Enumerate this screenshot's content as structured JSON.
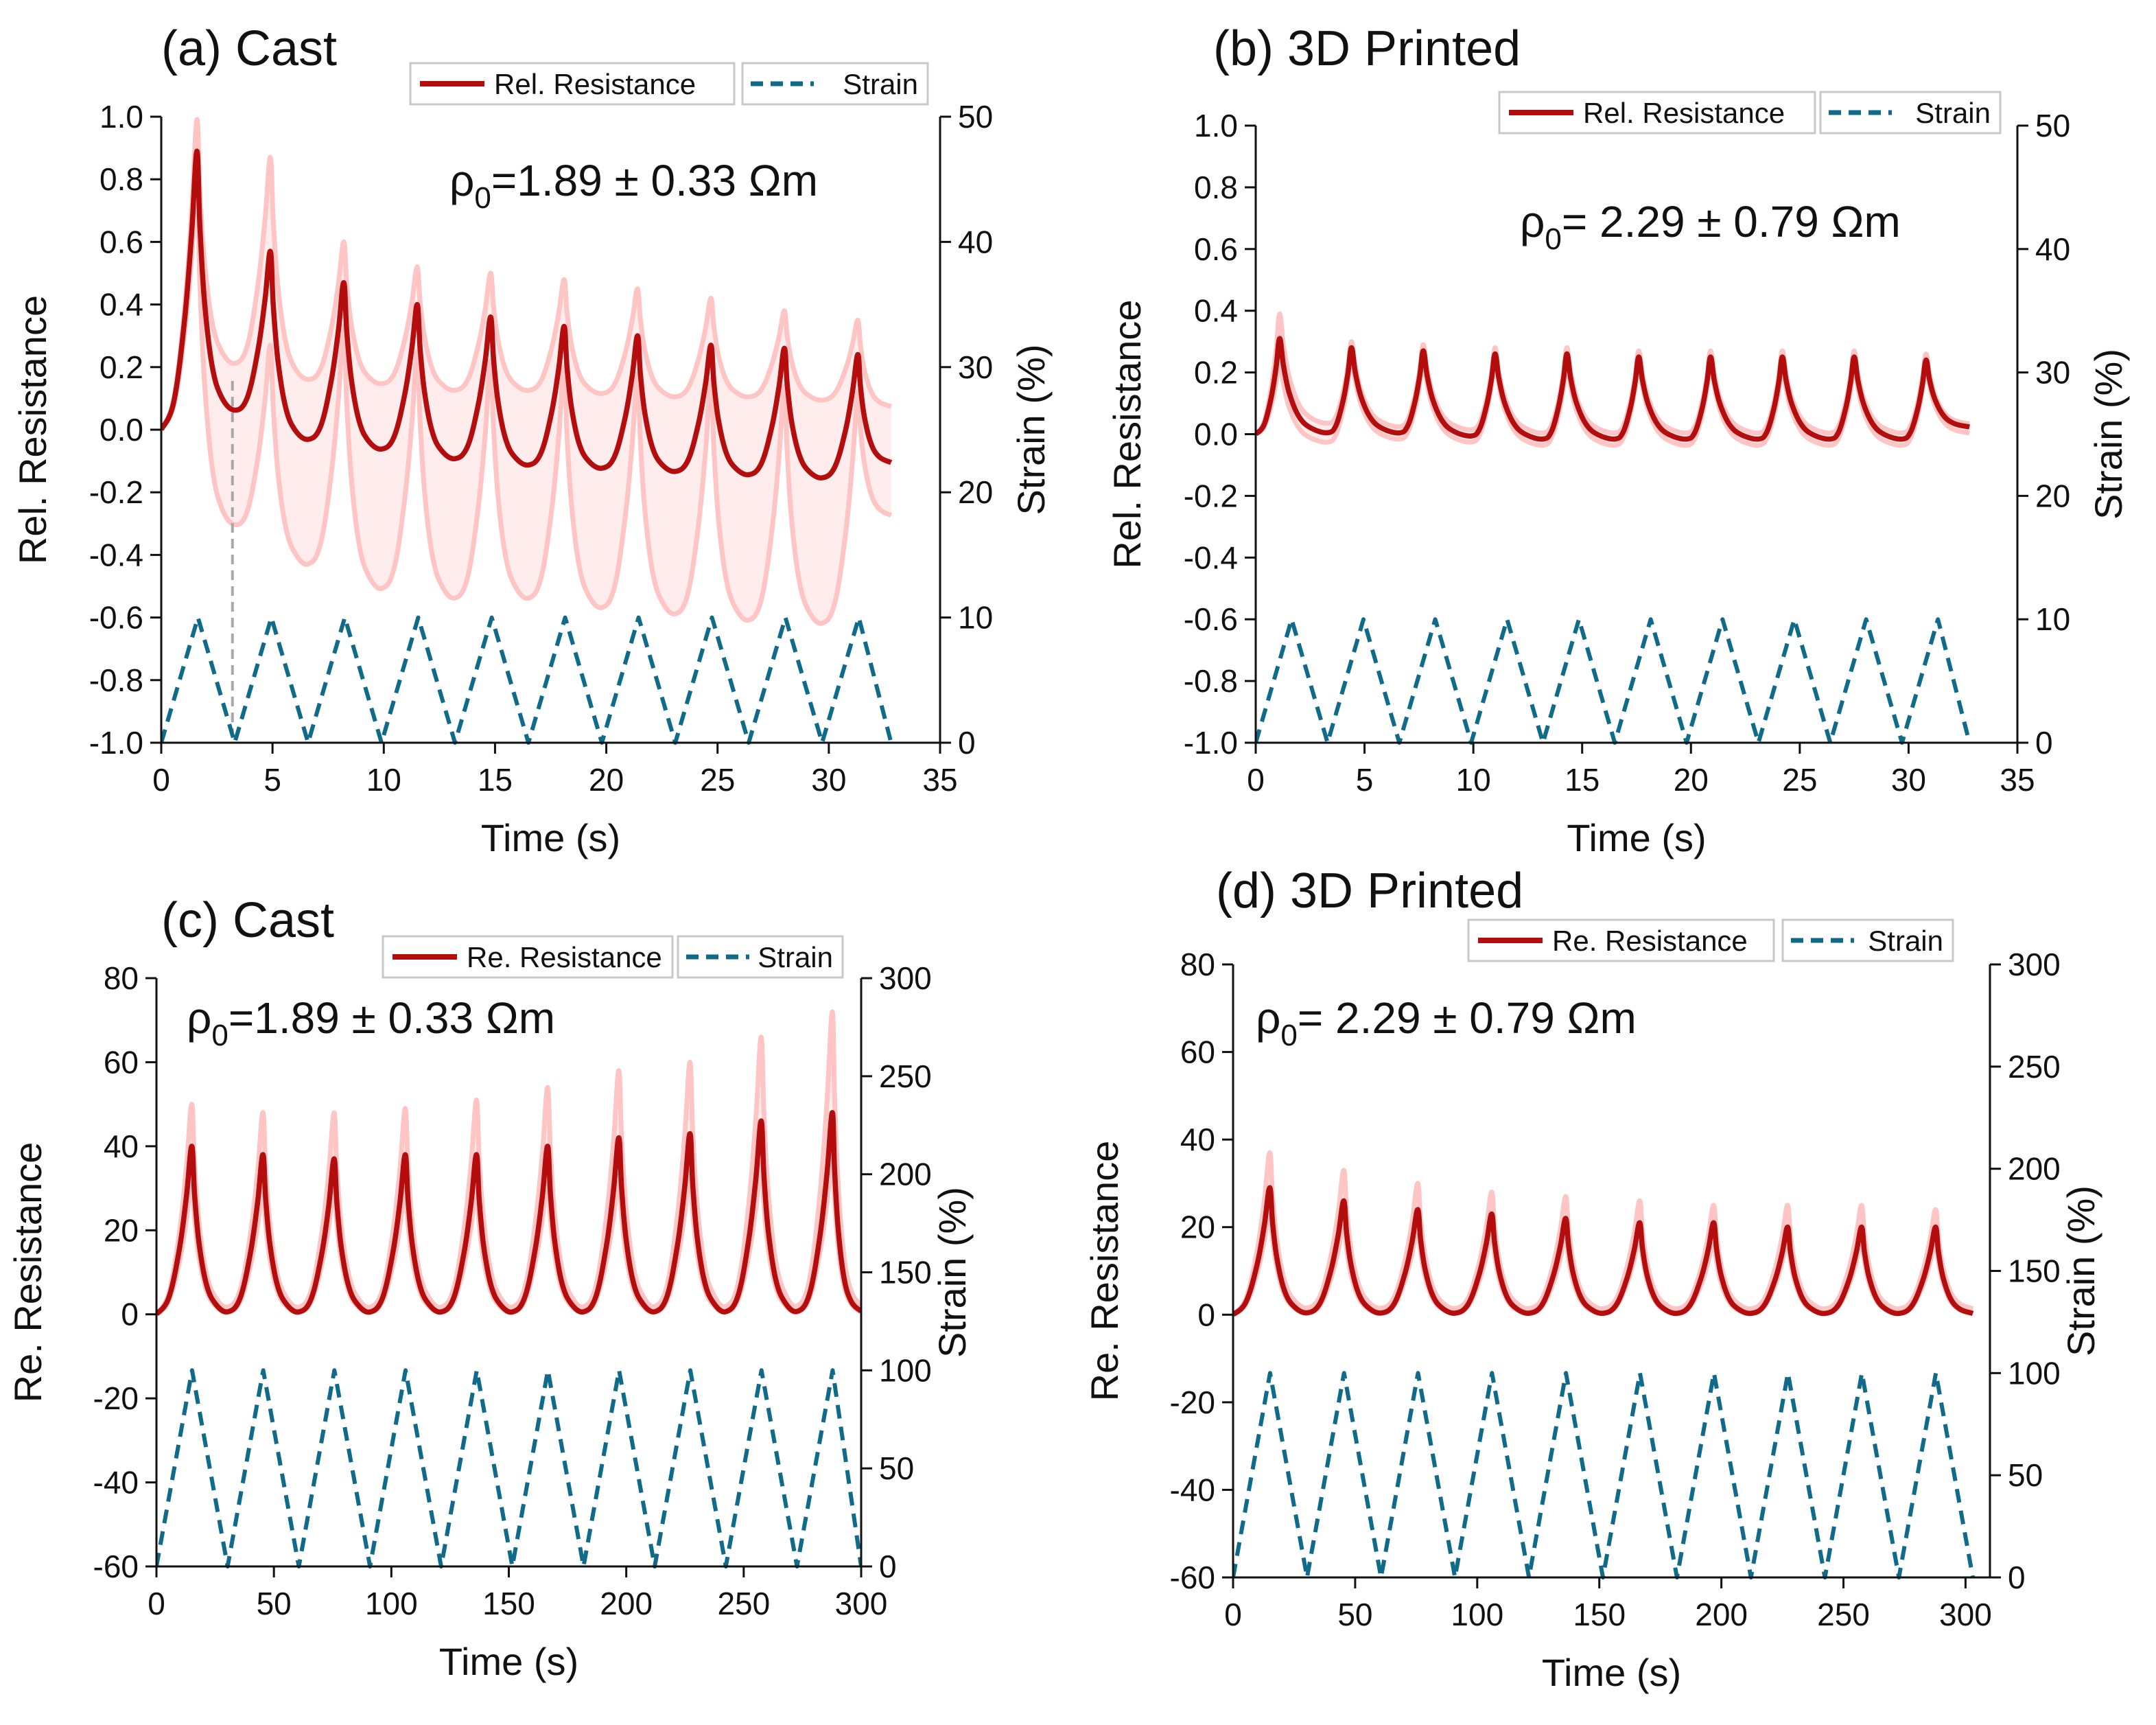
{
  "colors": {
    "resistance": "#b30d0d",
    "resistance_band": "#ffc4c4",
    "strain": "#106a8a",
    "axis": "#111111",
    "marker": "#a8a8a8"
  },
  "chart_data": [
    {
      "type": "line",
      "panel_label": "(a) Cast",
      "annotation_prefix": "ρ",
      "annotation_sub": "0",
      "annotation_text": "=1.89 ± 0.33 Ωm",
      "xlabel": "Time (s)",
      "ylabel_left": "Rel. Resistance",
      "ylabel_right": "Strain (%)",
      "legend": [
        "Rel. Resistance",
        "Strain"
      ],
      "xlim": [
        0,
        35
      ],
      "ylim_left": [
        -1.0,
        1.0
      ],
      "ylim_right": [
        0,
        50
      ],
      "x_ticks": [
        "0",
        "5",
        "10",
        "15",
        "20",
        "25",
        "30",
        "35"
      ],
      "y_ticks_left": [
        "-1.0",
        "-0.8",
        "-0.6",
        "-0.4",
        "-0.2",
        "0.0",
        "0.2",
        "0.4",
        "0.6",
        "0.8",
        "1.0"
      ],
      "y_ticks_right": [
        "0",
        "10",
        "20",
        "30",
        "40",
        "50"
      ],
      "series": [
        {
          "name": "Rel. Resistance",
          "style": "solid",
          "axis": "left",
          "start": [
            0,
            0.0
          ],
          "period": 3.3,
          "peak_time_in_cycle": 1.6,
          "peaks": [
            0.89,
            0.57,
            0.47,
            0.4,
            0.36,
            0.33,
            0.3,
            0.27,
            0.26,
            0.24
          ],
          "troughs": [
            0.05,
            -0.04,
            -0.07,
            -0.1,
            -0.12,
            -0.13,
            -0.14,
            -0.15,
            -0.16,
            -0.11
          ],
          "band_upper_peaks": [
            0.99,
            0.87,
            0.6,
            0.52,
            0.5,
            0.48,
            0.45,
            0.42,
            0.38,
            0.35
          ],
          "band_upper_troughs": [
            0.2,
            0.15,
            0.14,
            0.12,
            0.12,
            0.11,
            0.1,
            0.1,
            0.09,
            0.07
          ],
          "band_lower_peaks": [
            0.78,
            0.27,
            0.33,
            0.25,
            0.22,
            0.2,
            0.18,
            0.16,
            0.14,
            0.12
          ],
          "band_lower_troughs": [
            -0.32,
            -0.44,
            -0.52,
            -0.55,
            -0.55,
            -0.58,
            -0.6,
            -0.62,
            -0.63,
            -0.28
          ],
          "end_x": 32.8
        },
        {
          "name": "Strain",
          "style": "dashed",
          "axis": "right",
          "period": 3.3,
          "min": 0,
          "max": 10,
          "cycles": 10,
          "end_x": 32.8
        }
      ],
      "marker_line_x": 3.2
    },
    {
      "type": "line",
      "panel_label": "(b) 3D Printed",
      "annotation_prefix": "ρ",
      "annotation_sub": "0",
      "annotation_text": "= 2.29 ± 0.79 Ωm",
      "xlabel": "Time (s)",
      "ylabel_left": "Rel. Resistance",
      "ylabel_right": "Strain (%)",
      "legend": [
        "Rel. Resistance",
        "Strain"
      ],
      "xlim": [
        0,
        35
      ],
      "ylim_left": [
        -1.0,
        1.0
      ],
      "ylim_right": [
        0,
        50
      ],
      "x_ticks": [
        "0",
        "5",
        "10",
        "15",
        "20",
        "25",
        "30",
        "35"
      ],
      "y_ticks_left": [
        "-1.0",
        "-0.8",
        "-0.6",
        "-0.4",
        "-0.2",
        "0.0",
        "0.2",
        "0.4",
        "0.6",
        "0.8",
        "1.0"
      ],
      "y_ticks_right": [
        "0",
        "10",
        "20",
        "30",
        "40",
        "50"
      ],
      "series": [
        {
          "name": "Rel. Resistance",
          "style": "solid",
          "axis": "left",
          "start": [
            0,
            0.0
          ],
          "period": 3.3,
          "peak_time_in_cycle": 1.1,
          "peaks": [
            0.31,
            0.28,
            0.27,
            0.26,
            0.26,
            0.25,
            0.25,
            0.25,
            0.25,
            0.24
          ],
          "troughs": [
            0.0,
            0.0,
            -0.01,
            -0.02,
            -0.02,
            -0.02,
            -0.02,
            -0.02,
            -0.02,
            0.02
          ],
          "band_upper_peaks": [
            0.39,
            0.3,
            0.29,
            0.28,
            0.28,
            0.27,
            0.27,
            0.27,
            0.27,
            0.26
          ],
          "band_upper_troughs": [
            0.03,
            0.02,
            0.01,
            0.0,
            0.0,
            0.0,
            0.0,
            0.0,
            0.0,
            0.03
          ],
          "band_lower_peaks": [
            0.24,
            0.25,
            0.24,
            0.24,
            0.23,
            0.23,
            0.23,
            0.22,
            0.22,
            0.22
          ],
          "band_lower_troughs": [
            -0.03,
            -0.02,
            -0.03,
            -0.04,
            -0.04,
            -0.04,
            -0.04,
            -0.04,
            -0.04,
            0.0
          ],
          "end_x": 32.8
        },
        {
          "name": "Strain",
          "style": "dashed",
          "axis": "right",
          "period": 3.3,
          "min": 0,
          "max": 10,
          "cycles": 10,
          "end_x": 32.8
        }
      ]
    },
    {
      "type": "line",
      "panel_label": "(c) Cast",
      "annotation_prefix": "ρ",
      "annotation_sub": "0",
      "annotation_text": "=1.89 ± 0.33 Ωm",
      "xlabel": "Time (s)",
      "ylabel_left": "Re. Resistance",
      "ylabel_right": "Strain (%)",
      "legend": [
        "Re. Resistance",
        "Strain"
      ],
      "xlim": [
        0,
        300
      ],
      "ylim_left": [
        -60,
        80
      ],
      "ylim_right": [
        0,
        300
      ],
      "x_ticks": [
        "0",
        "50",
        "100",
        "150",
        "200",
        "250",
        "300"
      ],
      "y_ticks_left": [
        "-60",
        "-40",
        "-20",
        "0",
        "20",
        "40",
        "60",
        "80"
      ],
      "y_ticks_right": [
        "0",
        "50",
        "100",
        "150",
        "200",
        "250",
        "300"
      ],
      "series": [
        {
          "name": "Re. Resistance",
          "style": "solid",
          "axis": "left",
          "start": [
            0,
            0
          ],
          "period": 30.3,
          "peak_time_in_cycle": 15,
          "peaks": [
            40,
            38,
            37,
            38,
            38,
            40,
            42,
            43,
            46,
            48
          ],
          "troughs": [
            0,
            0,
            0,
            0,
            0,
            0,
            0,
            0,
            0,
            0
          ],
          "band_upper_peaks": [
            50,
            48,
            48,
            49,
            51,
            54,
            58,
            60,
            66,
            72
          ],
          "band_upper_troughs": [
            1,
            1,
            1,
            1,
            1,
            1,
            1,
            1,
            1,
            1
          ],
          "band_lower_peaks": [
            32,
            30,
            30,
            30,
            30,
            32,
            33,
            34,
            36,
            38
          ],
          "band_lower_troughs": [
            0,
            0,
            0,
            0,
            0,
            0,
            0,
            0,
            0,
            0
          ],
          "end_x": 300
        },
        {
          "name": "Strain",
          "style": "dashed",
          "axis": "right",
          "period": 30.3,
          "min": 0,
          "max": 100,
          "cycles": 10,
          "end_x": 300
        }
      ]
    },
    {
      "type": "line",
      "panel_label": "(d) 3D Printed",
      "annotation_prefix": "ρ",
      "annotation_sub": "0",
      "annotation_text": "= 2.29 ± 0.79 Ωm",
      "xlabel": "Time (s)",
      "ylabel_left": "Re. Resistance",
      "ylabel_right": "Strain (%)",
      "legend": [
        "Re. Resistance",
        "Strain"
      ],
      "xlim": [
        0,
        310
      ],
      "ylim_left": [
        -60,
        80
      ],
      "ylim_right": [
        0,
        300
      ],
      "x_ticks": [
        "0",
        "50",
        "100",
        "150",
        "200",
        "250",
        "300"
      ],
      "y_ticks_left": [
        "-60",
        "-40",
        "-20",
        "0",
        "20",
        "40",
        "60",
        "80"
      ],
      "y_ticks_right": [
        "0",
        "50",
        "100",
        "150",
        "200",
        "250",
        "300"
      ],
      "series": [
        {
          "name": "Re. Resistance",
          "style": "solid",
          "axis": "left",
          "start": [
            0,
            0
          ],
          "period": 30.3,
          "peak_time_in_cycle": 15,
          "peaks": [
            29,
            26,
            24,
            23,
            22,
            21,
            21,
            20,
            20,
            20
          ],
          "troughs": [
            0,
            0,
            0,
            0,
            0,
            0,
            0,
            0,
            0,
            0
          ],
          "band_upper_peaks": [
            37,
            33,
            30,
            28,
            27,
            26,
            25,
            25,
            25,
            24
          ],
          "band_upper_troughs": [
            1,
            1,
            1,
            1,
            1,
            1,
            1,
            1,
            1,
            1
          ],
          "band_lower_peaks": [
            24,
            21,
            20,
            19,
            18,
            18,
            17,
            17,
            17,
            17
          ],
          "band_lower_troughs": [
            0,
            0,
            0,
            0,
            0,
            0,
            0,
            0,
            0,
            0
          ],
          "end_x": 303
        },
        {
          "name": "Strain",
          "style": "dashed",
          "axis": "right",
          "period": 30.3,
          "min": 0,
          "max": 100,
          "cycles": 10,
          "end_x": 303
        }
      ]
    }
  ]
}
